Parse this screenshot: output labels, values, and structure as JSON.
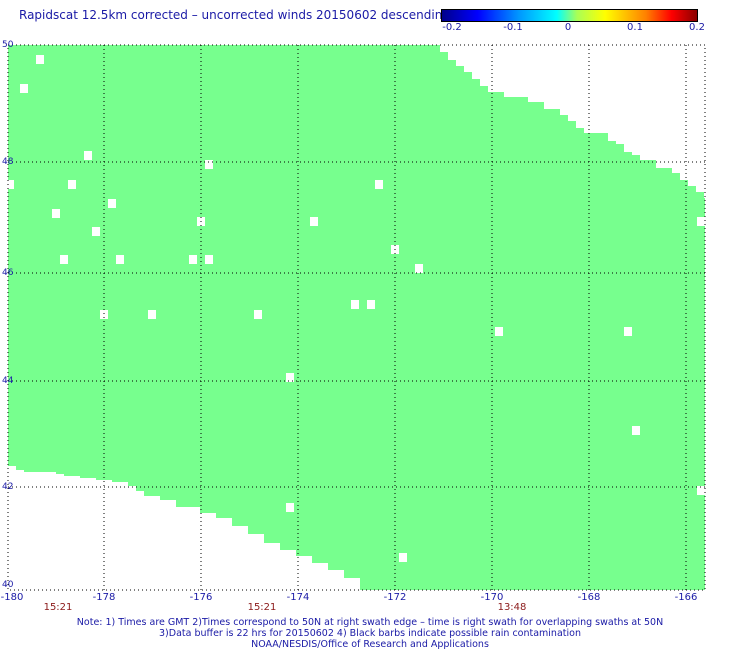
{
  "title": "Rapidscat 12.5km corrected – uncorrected winds 20150602 descending",
  "colorbar": {
    "ticks": [
      "-0.2",
      "-0.1",
      "0",
      "0.1",
      "0.2"
    ],
    "range": [
      -0.2,
      0.2
    ]
  },
  "map": {
    "lon_range": [
      -180,
      -165
    ],
    "lat_range": [
      40,
      50
    ],
    "lon_labels": [
      "-180",
      "-178",
      "-176",
      "-174",
      "-172",
      "-170",
      "-168",
      "-166"
    ],
    "lat_labels": [
      "50",
      "48",
      "46",
      "44",
      "42",
      "40"
    ],
    "swath_color": "#77ff8e",
    "grid_color": "#000000"
  },
  "times": [
    "15:21",
    "15:21",
    "13:48"
  ],
  "notes": [
    "Note: 1) Times are GMT 2)Times correspond to 50N at right swath edge – time is right swath for overlapping swaths at 50N",
    "3)Data buffer is 22 hrs for 20150602 4) Black barbs indicate possible rain contamination",
    "NOAA/NESDIS/Office of Research and Applications"
  ]
}
